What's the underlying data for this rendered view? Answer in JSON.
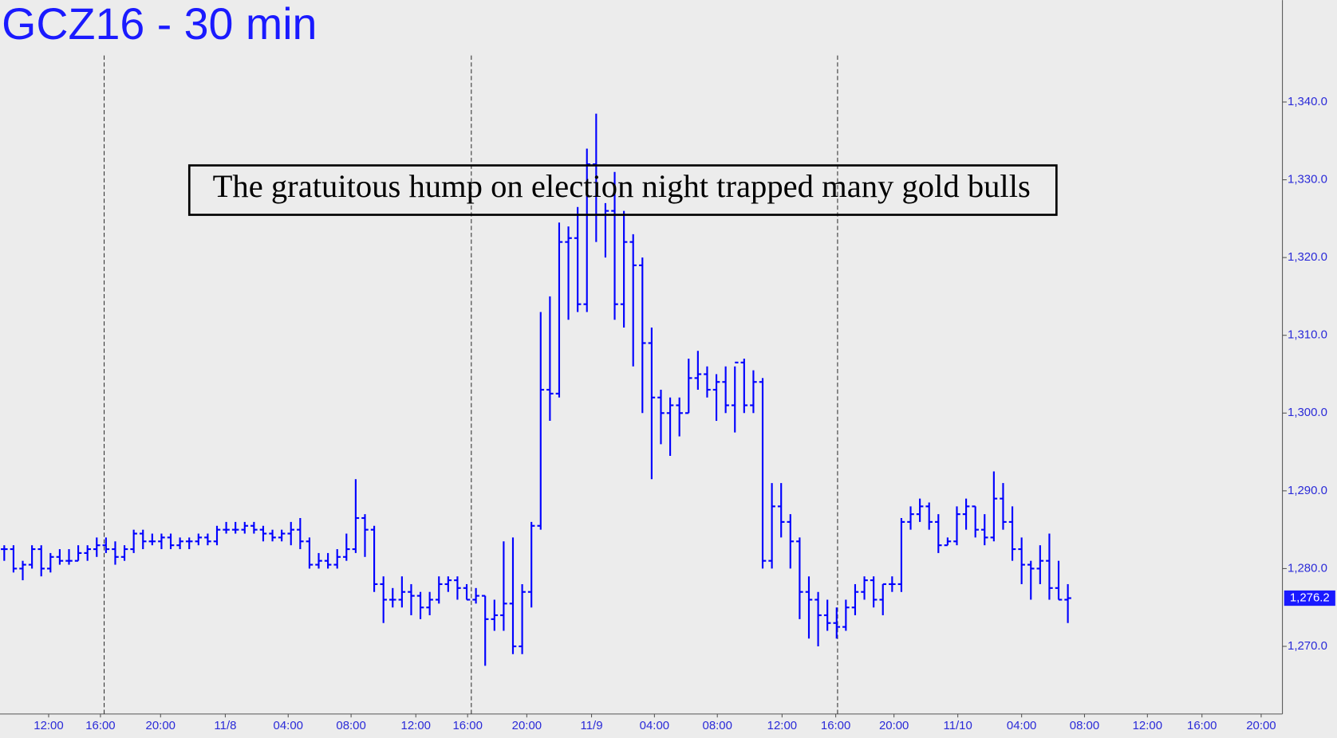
{
  "chart_data": {
    "type": "ohlc",
    "title": "GCZ16 - 30 min",
    "annotation": "The gratuitous hump on election night trapped many gold bulls",
    "color": "#0000ff",
    "ylim": [
      1261.3,
      1353.1
    ],
    "yticks": [
      {
        "value": 1270,
        "label": "1,270.0"
      },
      {
        "value": 1280,
        "label": "1,280.0"
      },
      {
        "value": 1290,
        "label": "1,290.0"
      },
      {
        "value": 1300,
        "label": "1,300.0"
      },
      {
        "value": 1310,
        "label": "1,310.0"
      },
      {
        "value": 1320,
        "label": "1,320.0"
      },
      {
        "value": 1330,
        "label": "1,330.0"
      },
      {
        "value": 1340,
        "label": "1,340.0"
      }
    ],
    "xlim": [
      -0.46,
      138.2
    ],
    "xticks": [
      {
        "value": 4.8,
        "label": "12:00"
      },
      {
        "value": 10.4,
        "label": "16:00"
      },
      {
        "value": 16.9,
        "label": "20:00"
      },
      {
        "value": 23.9,
        "label": "11/8"
      },
      {
        "value": 30.7,
        "label": "04:00"
      },
      {
        "value": 37.5,
        "label": "08:00"
      },
      {
        "value": 44.5,
        "label": "12:00"
      },
      {
        "value": 50.1,
        "label": "16:00"
      },
      {
        "value": 56.5,
        "label": "20:00"
      },
      {
        "value": 63.5,
        "label": "11/9"
      },
      {
        "value": 70.3,
        "label": "04:00"
      },
      {
        "value": 77.1,
        "label": "08:00"
      },
      {
        "value": 84.1,
        "label": "12:00"
      },
      {
        "value": 89.9,
        "label": "16:00"
      },
      {
        "value": 96.2,
        "label": "20:00"
      },
      {
        "value": 103.1,
        "label": "11/10"
      },
      {
        "value": 110,
        "label": "04:00"
      },
      {
        "value": 116.8,
        "label": "08:00"
      },
      {
        "value": 123.6,
        "label": "12:00"
      },
      {
        "value": 129.5,
        "label": "16:00"
      },
      {
        "value": 135.9,
        "label": "20:00"
      }
    ],
    "session_lines": [
      10.8,
      50.5,
      90.1
    ],
    "last_value_label": "1,276.2",
    "bars": [
      [
        1282.5,
        1283,
        1281,
        1282.5
      ],
      [
        1282.5,
        1283,
        1279.5,
        1280
      ],
      [
        1280,
        1281,
        1278.5,
        1280.5
      ],
      [
        1280.5,
        1283,
        1280,
        1282.5
      ],
      [
        1282.5,
        1283,
        1279,
        1280
      ],
      [
        1280,
        1282,
        1279.5,
        1281.5
      ],
      [
        1281.5,
        1282.5,
        1280.5,
        1281
      ],
      [
        1281,
        1282.5,
        1280.5,
        1281
      ],
      [
        1281,
        1283,
        1281,
        1282
      ],
      [
        1282,
        1283,
        1281,
        1282.5
      ],
      [
        1282.5,
        1284,
        1281.5,
        1283
      ],
      [
        1283,
        1284,
        1282,
        1282.5
      ],
      [
        1282.5,
        1283.5,
        1280.5,
        1281.5
      ],
      [
        1281.5,
        1283,
        1281,
        1282.5
      ],
      [
        1282.5,
        1285,
        1282,
        1284.5
      ],
      [
        1284.5,
        1285,
        1282.5,
        1283.5
      ],
      [
        1283.5,
        1284.5,
        1283,
        1283.5
      ],
      [
        1283.5,
        1284.5,
        1282.5,
        1284
      ],
      [
        1284,
        1284.5,
        1282.5,
        1283
      ],
      [
        1283,
        1284,
        1282.5,
        1283.5
      ],
      [
        1283.5,
        1284,
        1282.5,
        1283.5
      ],
      [
        1283.5,
        1284.5,
        1283,
        1284
      ],
      [
        1284,
        1284.5,
        1283,
        1283.5
      ],
      [
        1283.5,
        1285.5,
        1283,
        1285
      ],
      [
        1285,
        1286,
        1284.5,
        1285
      ],
      [
        1285,
        1286,
        1284.5,
        1285
      ],
      [
        1285,
        1286,
        1284.5,
        1285.5
      ],
      [
        1285.5,
        1286,
        1284.5,
        1285
      ],
      [
        1285,
        1285.5,
        1283.5,
        1284.5
      ],
      [
        1284.5,
        1285,
        1283.5,
        1284
      ],
      [
        1284,
        1285,
        1283.5,
        1284.5
      ],
      [
        1284.5,
        1286,
        1283,
        1285
      ],
      [
        1285,
        1286.5,
        1282.5,
        1283.5
      ],
      [
        1283.5,
        1284,
        1280,
        1280.5
      ],
      [
        1280.5,
        1282,
        1280,
        1281
      ],
      [
        1281,
        1282,
        1280,
        1280.5
      ],
      [
        1280.5,
        1282.5,
        1280,
        1281.5
      ],
      [
        1281.5,
        1284.5,
        1281,
        1282.5
      ],
      [
        1282.5,
        1291.5,
        1282,
        1286.5
      ],
      [
        1286.5,
        1287,
        1281.5,
        1285
      ],
      [
        1285,
        1285.5,
        1277,
        1278
      ],
      [
        1278,
        1279,
        1273,
        1276
      ],
      [
        1276,
        1277.5,
        1275,
        1276
      ],
      [
        1276,
        1279,
        1275,
        1277
      ],
      [
        1277,
        1278,
        1274,
        1276.5
      ],
      [
        1276.5,
        1277,
        1273.5,
        1275
      ],
      [
        1275,
        1277,
        1274,
        1276
      ],
      [
        1276,
        1279,
        1275.5,
        1278
      ],
      [
        1278,
        1279,
        1277,
        1278.5
      ],
      [
        1278.5,
        1279,
        1276,
        1277.5
      ],
      [
        1277.5,
        1278,
        1276,
        1276
      ],
      [
        1276,
        1277.5,
        1275.5,
        1276.5
      ],
      [
        1276.5,
        1276.5,
        1267.5,
        1273.5
      ],
      [
        1273.5,
        1276,
        1272,
        1274
      ],
      [
        1274,
        1283.5,
        1272,
        1275.5
      ],
      [
        1275.5,
        1284,
        1269,
        1270
      ],
      [
        1270,
        1278,
        1269,
        1277
      ],
      [
        1277,
        1286,
        1275,
        1285.5
      ],
      [
        1285.5,
        1313,
        1285,
        1303
      ],
      [
        1303,
        1315,
        1299,
        1302.5
      ],
      [
        1302.5,
        1324.5,
        1302,
        1322
      ],
      [
        1322,
        1324,
        1312,
        1322.5
      ],
      [
        1322.5,
        1326.5,
        1313,
        1314
      ],
      [
        1314,
        1334,
        1313,
        1332
      ],
      [
        1332,
        1338.5,
        1322,
        1325.5
      ],
      [
        1325.5,
        1327,
        1320,
        1326
      ],
      [
        1326,
        1331,
        1312,
        1314
      ],
      [
        1314,
        1326,
        1311,
        1322
      ],
      [
        1322,
        1323,
        1306,
        1319
      ],
      [
        1319,
        1320,
        1300,
        1309
      ],
      [
        1309,
        1311,
        1291.5,
        1302
      ],
      [
        1302,
        1303,
        1296,
        1300
      ],
      [
        1300,
        1302,
        1294.5,
        1301
      ],
      [
        1301,
        1302,
        1297,
        1300
      ],
      [
        1300,
        1307,
        1300,
        1304.5
      ],
      [
        1304.5,
        1308,
        1303,
        1305
      ],
      [
        1305,
        1306,
        1302,
        1303
      ],
      [
        1303,
        1305,
        1299,
        1304
      ],
      [
        1304,
        1306,
        1300,
        1301
      ],
      [
        1301,
        1306,
        1297.5,
        1306.5
      ],
      [
        1306.5,
        1307,
        1300,
        1301
      ],
      [
        1301,
        1305.5,
        1300,
        1304
      ],
      [
        1304,
        1304.5,
        1280,
        1281
      ],
      [
        1281,
        1291,
        1280,
        1288
      ],
      [
        1288,
        1291,
        1284,
        1286
      ],
      [
        1286,
        1287,
        1280,
        1283.5
      ],
      [
        1283.5,
        1284,
        1273.5,
        1277
      ],
      [
        1277,
        1279,
        1271,
        1276
      ],
      [
        1276,
        1277,
        1270,
        1274
      ],
      [
        1274,
        1276,
        1272,
        1273
      ],
      [
        1273,
        1275,
        1271,
        1272.5
      ],
      [
        1272.5,
        1276,
        1272,
        1275
      ],
      [
        1275,
        1278,
        1274,
        1277
      ],
      [
        1277,
        1279,
        1276,
        1278.5
      ],
      [
        1278.5,
        1279,
        1275,
        1276
      ],
      [
        1276,
        1278,
        1274,
        1278
      ],
      [
        1278,
        1279,
        1277,
        1278
      ],
      [
        1278,
        1286.5,
        1277,
        1286
      ],
      [
        1286,
        1288,
        1285,
        1287
      ],
      [
        1287,
        1289,
        1286,
        1288
      ],
      [
        1288,
        1288.5,
        1285,
        1286
      ],
      [
        1286,
        1287,
        1282,
        1283
      ],
      [
        1283,
        1284,
        1283,
        1283.5
      ],
      [
        1283.5,
        1288,
        1283,
        1287
      ],
      [
        1287,
        1289,
        1285,
        1288
      ],
      [
        1288,
        1288,
        1284,
        1285
      ],
      [
        1285,
        1287,
        1283,
        1284
      ],
      [
        1284,
        1292.5,
        1283.5,
        1289
      ],
      [
        1289,
        1291,
        1285,
        1286
      ],
      [
        1286,
        1288,
        1281,
        1282.5
      ],
      [
        1282.5,
        1284,
        1278,
        1280.5
      ],
      [
        1280.5,
        1281,
        1276,
        1280
      ],
      [
        1280,
        1283,
        1278,
        1281
      ],
      [
        1281,
        1284.5,
        1276,
        1277.5
      ],
      [
        1277.5,
        1281,
        1276,
        1276
      ],
      [
        1276,
        1278,
        1273,
        1276.2
      ]
    ]
  }
}
